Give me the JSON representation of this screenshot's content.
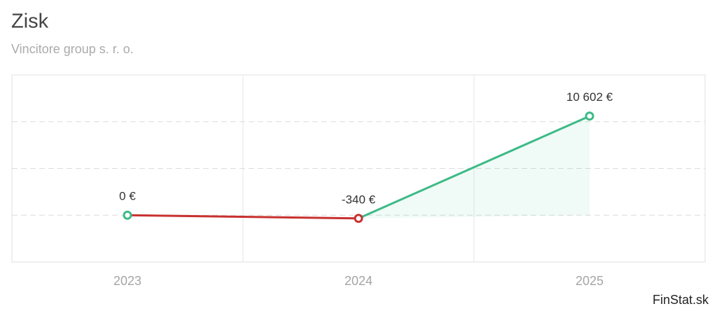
{
  "chart_data": {
    "type": "line",
    "title": "Zisk",
    "subtitle": "Vincitore group s. r. o.",
    "categories": [
      "2023",
      "2024",
      "2025"
    ],
    "values": [
      0,
      -340,
      10602
    ],
    "value_labels": [
      "0 €",
      "-340 €",
      "10 602 €"
    ],
    "positive_color": "#3dba87",
    "negative_color": "#c8312f",
    "ylim": [
      -5000,
      15000
    ],
    "yticks": [
      0,
      5000,
      10000
    ],
    "grid": true,
    "credit": "FinStat.sk"
  }
}
